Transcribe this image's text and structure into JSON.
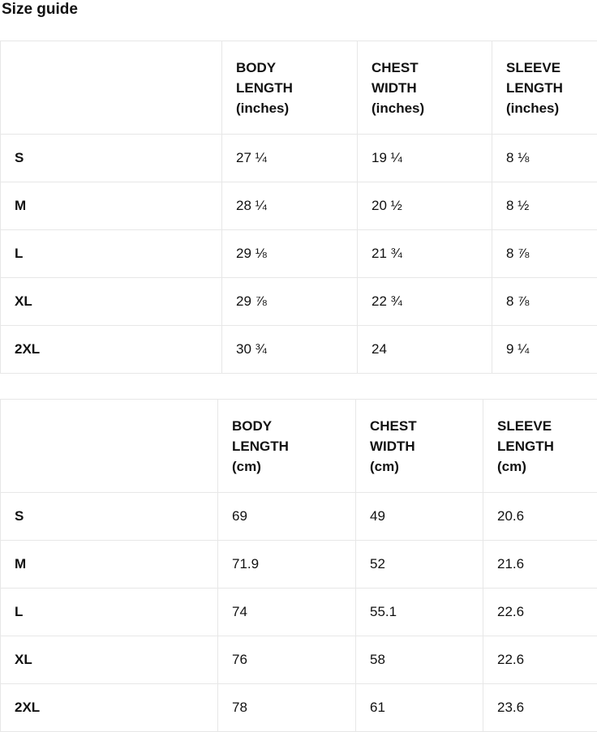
{
  "page": {
    "title": "Size guide"
  },
  "colors": {
    "background": "#ffffff",
    "text": "#111111",
    "border": "#e7e7e7"
  },
  "tables": [
    {
      "unit": "inches",
      "columns": [
        {
          "label": "BODY LENGTH (inches)",
          "lines": [
            "BODY",
            "LENGTH",
            "(inches)"
          ]
        },
        {
          "label": "CHEST WIDTH (inches)",
          "lines": [
            "CHEST",
            "WIDTH",
            "(inches)"
          ]
        },
        {
          "label": "SLEEVE LENGTH (inches)",
          "lines": [
            "SLEEVE",
            "LENGTH",
            "(inches)"
          ]
        }
      ],
      "rows": [
        {
          "size": "S",
          "body_length": "27 ¼",
          "chest_width": "19 ¼",
          "sleeve_length": "8 ⅛"
        },
        {
          "size": "M",
          "body_length": "28 ¼",
          "chest_width": "20 ½",
          "sleeve_length": "8 ½"
        },
        {
          "size": "L",
          "body_length": "29 ⅛",
          "chest_width": "21 ¾",
          "sleeve_length": "8 ⅞"
        },
        {
          "size": "XL",
          "body_length": "29 ⅞",
          "chest_width": "22 ¾",
          "sleeve_length": "8 ⅞"
        },
        {
          "size": "2XL",
          "body_length": "30 ¾",
          "chest_width": "24",
          "sleeve_length": "9 ¼"
        }
      ]
    },
    {
      "unit": "cm",
      "columns": [
        {
          "label": "BODY LENGTH (cm)",
          "lines": [
            "BODY",
            "LENGTH",
            "(cm)"
          ]
        },
        {
          "label": "CHEST WIDTH (cm)",
          "lines": [
            "CHEST",
            "WIDTH",
            "(cm)"
          ]
        },
        {
          "label": "SLEEVE LENGTH (cm)",
          "lines": [
            "SLEEVE",
            "LENGTH",
            "(cm)"
          ]
        }
      ],
      "rows": [
        {
          "size": "S",
          "body_length": "69",
          "chest_width": "49",
          "sleeve_length": "20.6"
        },
        {
          "size": "M",
          "body_length": "71.9",
          "chest_width": "52",
          "sleeve_length": "21.6"
        },
        {
          "size": "L",
          "body_length": "74",
          "chest_width": "55.1",
          "sleeve_length": "22.6"
        },
        {
          "size": "XL",
          "body_length": "76",
          "chest_width": "58",
          "sleeve_length": "22.6"
        },
        {
          "size": "2XL",
          "body_length": "78",
          "chest_width": "61",
          "sleeve_length": "23.6"
        }
      ]
    }
  ]
}
